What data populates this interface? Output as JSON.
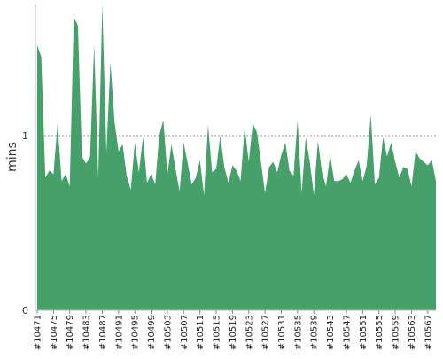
{
  "chart_data": {
    "type": "area",
    "title": "",
    "xlabel": "",
    "ylabel": "mins",
    "ylim": [
      0,
      1.75
    ],
    "y_ticks": [
      0,
      1
    ],
    "reference_line": {
      "y": 1,
      "style": "dashed"
    },
    "grid": false,
    "legend": "none",
    "color": "#45a06a",
    "x_tick_labels": [
      "#10471",
      "#10475",
      "#10479",
      "#10483",
      "#10487",
      "#10491",
      "#10495",
      "#10499",
      "#10503",
      "#10507",
      "#10511",
      "#10515",
      "#10519",
      "#10523",
      "#10527",
      "#10531",
      "#10535",
      "#10539",
      "#10543",
      "#10547",
      "#10551",
      "#10555",
      "#10559",
      "#10563",
      "#10567"
    ],
    "x": [
      "#10471",
      "#10472",
      "#10473",
      "#10474",
      "#10475",
      "#10476",
      "#10477",
      "#10478",
      "#10479",
      "#10480",
      "#10481",
      "#10482",
      "#10483",
      "#10484",
      "#10485",
      "#10486",
      "#10487",
      "#10488",
      "#10489",
      "#10490",
      "#10491",
      "#10492",
      "#10493",
      "#10494",
      "#10495",
      "#10496",
      "#10497",
      "#10498",
      "#10499",
      "#10500",
      "#10501",
      "#10502",
      "#10503",
      "#10504",
      "#10505",
      "#10506",
      "#10507",
      "#10508",
      "#10509",
      "#10510",
      "#10511",
      "#10512",
      "#10513",
      "#10514",
      "#10515",
      "#10516",
      "#10517",
      "#10518",
      "#10519",
      "#10520",
      "#10521",
      "#10522",
      "#10523",
      "#10524",
      "#10525",
      "#10526",
      "#10527",
      "#10528",
      "#10529",
      "#10530",
      "#10531",
      "#10532",
      "#10533",
      "#10534",
      "#10535",
      "#10536",
      "#10537",
      "#10538",
      "#10539",
      "#10540",
      "#10541",
      "#10542",
      "#10543",
      "#10544",
      "#10545",
      "#10546",
      "#10547",
      "#10548",
      "#10549",
      "#10550",
      "#10551",
      "#10552",
      "#10553",
      "#10554",
      "#10555",
      "#10556",
      "#10557",
      "#10558",
      "#10559",
      "#10560",
      "#10561",
      "#10562",
      "#10563",
      "#10564",
      "#10565",
      "#10566",
      "#10567",
      "#10568",
      "#10569"
    ],
    "values": [
      1.52,
      1.45,
      0.76,
      0.8,
      0.78,
      1.07,
      0.74,
      0.78,
      0.71,
      1.68,
      1.63,
      0.88,
      0.84,
      0.88,
      1.52,
      0.76,
      1.75,
      0.9,
      1.42,
      1.08,
      0.91,
      0.95,
      0.77,
      0.69,
      0.96,
      0.79,
      0.99,
      0.73,
      0.78,
      0.72,
      1.0,
      1.09,
      0.78,
      0.95,
      0.81,
      0.68,
      0.96,
      0.84,
      0.72,
      0.76,
      0.86,
      0.66,
      1.06,
      0.79,
      0.81,
      1.0,
      0.82,
      0.73,
      0.83,
      0.8,
      0.74,
      1.05,
      0.85,
      1.07,
      1.02,
      0.85,
      0.67,
      0.82,
      0.85,
      0.79,
      0.89,
      0.96,
      0.8,
      0.77,
      1.09,
      0.67,
      0.99,
      0.85,
      0.66,
      0.97,
      0.79,
      0.71,
      0.89,
      0.74,
      0.74,
      0.75,
      0.78,
      0.73,
      0.8,
      0.86,
      0.74,
      0.83,
      1.12,
      0.72,
      0.76,
      0.99,
      0.88,
      0.96,
      0.85,
      0.76,
      0.82,
      0.81,
      0.71,
      0.91,
      0.87,
      0.85,
      0.83,
      0.86,
      0.74
    ]
  }
}
